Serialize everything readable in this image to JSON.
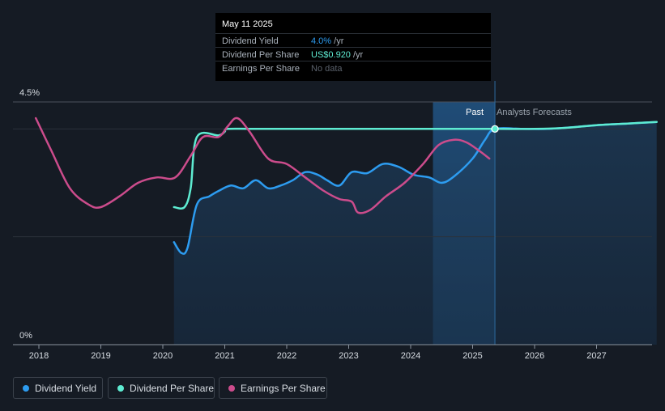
{
  "chart_data": {
    "type": "line",
    "y_axis": {
      "top_label": "4.5%",
      "bottom_label": "0%",
      "ylim": [
        0,
        4.5
      ]
    },
    "x_ticks": [
      "2018",
      "2019",
      "2020",
      "2021",
      "2022",
      "2023",
      "2024",
      "2025",
      "2026",
      "2027"
    ],
    "regions": {
      "past_label": "Past",
      "forecast_label": "Analysts Forecasts"
    },
    "marker_date": 2025.36,
    "series": [
      {
        "name": "Dividend Yield",
        "color": "#2d9cf0",
        "area": true,
        "points": [
          [
            2020.18,
            1.9
          ],
          [
            2020.3,
            1.7
          ],
          [
            2020.4,
            1.8
          ],
          [
            2020.55,
            2.6
          ],
          [
            2020.75,
            2.75
          ],
          [
            2020.9,
            2.85
          ],
          [
            2021.1,
            2.95
          ],
          [
            2021.3,
            2.9
          ],
          [
            2021.5,
            3.05
          ],
          [
            2021.7,
            2.9
          ],
          [
            2021.9,
            2.95
          ],
          [
            2022.1,
            3.05
          ],
          [
            2022.3,
            3.2
          ],
          [
            2022.5,
            3.15
          ],
          [
            2022.65,
            3.05
          ],
          [
            2022.85,
            2.95
          ],
          [
            2023.05,
            3.2
          ],
          [
            2023.3,
            3.18
          ],
          [
            2023.55,
            3.35
          ],
          [
            2023.8,
            3.3
          ],
          [
            2024.05,
            3.15
          ],
          [
            2024.3,
            3.1
          ],
          [
            2024.5,
            3.0
          ],
          [
            2024.7,
            3.12
          ],
          [
            2025.0,
            3.45
          ],
          [
            2025.2,
            3.8
          ],
          [
            2025.36,
            4.0
          ],
          [
            2025.8,
            4.0
          ],
          [
            2026.2,
            4.0
          ],
          [
            2026.6,
            4.03
          ],
          [
            2027.0,
            4.07
          ],
          [
            2027.5,
            4.1
          ],
          [
            2027.97,
            4.13
          ]
        ]
      },
      {
        "name": "Dividend Per Share",
        "color": "#5eecd2",
        "area": false,
        "points": [
          [
            2020.18,
            2.55
          ],
          [
            2020.35,
            2.55
          ],
          [
            2020.45,
            2.9
          ],
          [
            2020.55,
            3.85
          ],
          [
            2020.9,
            3.88
          ],
          [
            2021.0,
            3.95
          ],
          [
            2021.05,
            4.0
          ],
          [
            2021.5,
            4.0
          ],
          [
            2022.5,
            4.0
          ],
          [
            2023.5,
            4.0
          ],
          [
            2024.5,
            4.0
          ],
          [
            2025.36,
            4.0
          ],
          [
            2026.0,
            4.0
          ],
          [
            2026.5,
            4.02
          ],
          [
            2027.0,
            4.07
          ],
          [
            2027.5,
            4.1
          ],
          [
            2027.97,
            4.13
          ]
        ]
      },
      {
        "name": "Earnings Per Share",
        "color": "#cc4c8c",
        "area": false,
        "points": [
          [
            2017.95,
            4.2
          ],
          [
            2018.2,
            3.6
          ],
          [
            2018.5,
            2.9
          ],
          [
            2018.8,
            2.6
          ],
          [
            2019.0,
            2.55
          ],
          [
            2019.3,
            2.75
          ],
          [
            2019.6,
            3.0
          ],
          [
            2019.9,
            3.1
          ],
          [
            2020.2,
            3.1
          ],
          [
            2020.45,
            3.5
          ],
          [
            2020.65,
            3.85
          ],
          [
            2020.9,
            3.85
          ],
          [
            2021.05,
            4.05
          ],
          [
            2021.2,
            4.2
          ],
          [
            2021.4,
            3.95
          ],
          [
            2021.7,
            3.45
          ],
          [
            2022.0,
            3.35
          ],
          [
            2022.3,
            3.1
          ],
          [
            2022.6,
            2.85
          ],
          [
            2022.85,
            2.7
          ],
          [
            2023.05,
            2.65
          ],
          [
            2023.15,
            2.45
          ],
          [
            2023.35,
            2.5
          ],
          [
            2023.6,
            2.75
          ],
          [
            2023.9,
            3.0
          ],
          [
            2024.2,
            3.35
          ],
          [
            2024.45,
            3.7
          ],
          [
            2024.7,
            3.8
          ],
          [
            2024.9,
            3.75
          ],
          [
            2025.1,
            3.6
          ],
          [
            2025.27,
            3.45
          ]
        ]
      }
    ]
  },
  "tooltip": {
    "date": "May 11 2025",
    "rows": [
      {
        "label": "Dividend Yield",
        "value": "4.0%",
        "unit": " /yr",
        "color": "#2d9cf0"
      },
      {
        "label": "Dividend Per Share",
        "value": "US$0.920",
        "unit": " /yr",
        "color": "#5eecd2"
      },
      {
        "label": "Earnings Per Share",
        "value": "No data",
        "unit": "",
        "color": "#5a616b"
      }
    ]
  },
  "legend": [
    {
      "label": "Dividend Yield",
      "color": "#2d9cf0"
    },
    {
      "label": "Dividend Per Share",
      "color": "#5eecd2"
    },
    {
      "label": "Earnings Per Share",
      "color": "#cc4c8c"
    }
  ]
}
